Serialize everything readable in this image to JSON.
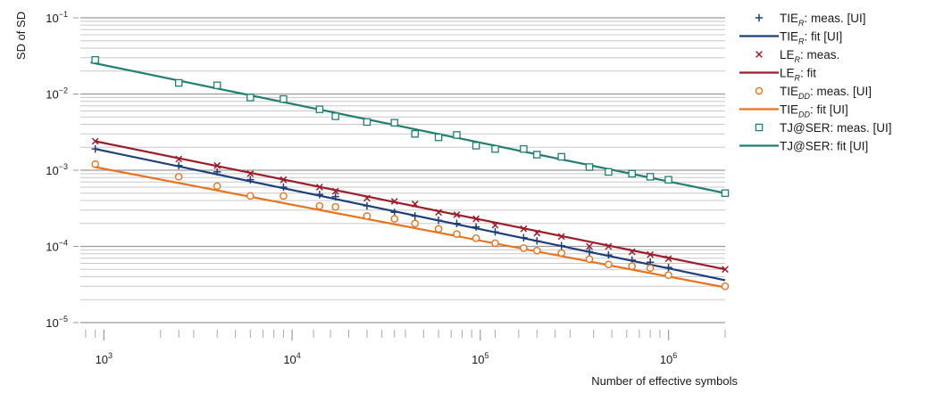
{
  "chart_data": {
    "type": "scatter",
    "title": "",
    "xlabel": "Number of effective symbols",
    "ylabel": "SD of SD",
    "xscale": "log",
    "yscale": "log",
    "xlim": [
      750,
      2000000
    ],
    "ylim": [
      1e-05,
      0.1
    ],
    "x_tick_labels": [
      {
        "value": 1000,
        "base": "10",
        "exp": "3"
      },
      {
        "value": 10000,
        "base": "10",
        "exp": "4"
      },
      {
        "value": 100000,
        "base": "10",
        "exp": "5"
      },
      {
        "value": 1000000,
        "base": "10",
        "exp": "6"
      }
    ],
    "y_tick_labels": [
      {
        "value": 1e-05,
        "base": "10",
        "exp": "−5"
      },
      {
        "value": 0.0001,
        "base": "10",
        "exp": "−4"
      },
      {
        "value": 0.001,
        "base": "10",
        "exp": "−3"
      },
      {
        "value": 0.01,
        "base": "10",
        "exp": "−2"
      },
      {
        "value": 0.1,
        "base": "10",
        "exp": "−1"
      }
    ],
    "grid": "horizontal minor and major lines",
    "legend_position": "right",
    "x_minor_ticks": [
      800,
      900,
      2000,
      2500,
      3000,
      4000,
      5000,
      6000,
      7000,
      8000,
      9000,
      13000,
      16000,
      20000,
      25000,
      30000,
      35000,
      40000,
      50000,
      60000,
      70000,
      80000,
      90000,
      120000,
      160000,
      200000,
      250000,
      300000,
      400000,
      500000,
      600000,
      700000,
      800000,
      900000,
      2000000
    ],
    "series": [
      {
        "legend_main": "TIE",
        "legend_sub": "R",
        "legend_rest": ": meas. [UI]",
        "kind": "marker",
        "marker": "plus",
        "color": "#1f3f7a",
        "x": [
          900,
          2500,
          4000,
          6000,
          9000,
          14000,
          17000,
          25000,
          35000,
          45000,
          60000,
          75000,
          95000,
          120000,
          170000,
          200000,
          270000,
          380000,
          480000,
          640000,
          800000,
          1000000
        ],
        "y": [
          0.0019,
          0.00115,
          0.00095,
          0.00075,
          0.0006,
          0.00048,
          0.00045,
          0.00034,
          0.00028,
          0.00025,
          0.00022,
          0.0002,
          0.00018,
          0.000155,
          0.00013,
          0.000118,
          0.000102,
          8.5e-05,
          7.7e-05,
          6.6e-05,
          6.2e-05,
          5.3e-05
        ]
      },
      {
        "legend_main": "TIE",
        "legend_sub": "R",
        "legend_rest": ": fit [UI]",
        "kind": "line",
        "color": "#1f3f7a",
        "x": [
          900,
          2000000
        ],
        "y": [
          0.0019,
          3.6e-05
        ]
      },
      {
        "legend_main": "LE",
        "legend_sub": "R",
        "legend_rest": ": meas.",
        "kind": "marker",
        "marker": "cross",
        "color": "#9e1b2a",
        "x": [
          900,
          2500,
          4000,
          6000,
          9000,
          14000,
          17000,
          25000,
          35000,
          45000,
          60000,
          75000,
          95000,
          120000,
          170000,
          200000,
          270000,
          380000,
          480000,
          640000,
          800000,
          1000000,
          2000000
        ],
        "y": [
          0.0024,
          0.0014,
          0.00115,
          0.0009,
          0.00075,
          0.0006,
          0.00053,
          0.00043,
          0.00039,
          0.00036,
          0.00028,
          0.00026,
          0.00023,
          0.00019,
          0.00017,
          0.00015,
          0.000135,
          0.0001,
          0.0001,
          8.5e-05,
          7.8e-05,
          6.9e-05,
          5e-05
        ]
      },
      {
        "legend_main": "LE",
        "legend_sub": "R",
        "legend_rest": ": fit",
        "kind": "line",
        "color": "#9e1b2a",
        "x": [
          900,
          2000000
        ],
        "y": [
          0.0024,
          5e-05
        ]
      },
      {
        "legend_main": "TIE",
        "legend_sub": "DD",
        "legend_rest": ": meas. [UI]",
        "kind": "marker",
        "marker": "circle",
        "color": "#e8731f",
        "x": [
          900,
          2500,
          4000,
          6000,
          9000,
          14000,
          17000,
          25000,
          35000,
          45000,
          60000,
          75000,
          95000,
          120000,
          170000,
          200000,
          270000,
          380000,
          480000,
          640000,
          800000,
          1000000,
          2000000
        ],
        "y": [
          0.0012,
          0.00082,
          0.00062,
          0.00046,
          0.00046,
          0.00034,
          0.00033,
          0.00025,
          0.00023,
          0.0002,
          0.00017,
          0.000145,
          0.000128,
          0.00011,
          9.5e-05,
          8.8e-05,
          8.2e-05,
          6.8e-05,
          5.8e-05,
          5.5e-05,
          5.2e-05,
          4.2e-05,
          3e-05
        ]
      },
      {
        "legend_main": "TIE",
        "legend_sub": "DD",
        "legend_rest": ": fit [UI]",
        "kind": "line",
        "color": "#e8731f",
        "x": [
          900,
          2000000
        ],
        "y": [
          0.0011,
          2.9e-05
        ]
      },
      {
        "legend_main": "TJ@SER",
        "legend_sub": "",
        "legend_rest": ": meas. [UI]",
        "kind": "marker",
        "marker": "square",
        "color": "#1e7f72",
        "x": [
          900,
          2500,
          4000,
          6000,
          9000,
          14000,
          17000,
          25000,
          35000,
          45000,
          60000,
          75000,
          95000,
          120000,
          170000,
          200000,
          270000,
          380000,
          480000,
          640000,
          800000,
          1000000,
          2000000
        ],
        "y": [
          0.028,
          0.014,
          0.013,
          0.009,
          0.0086,
          0.0063,
          0.0051,
          0.0043,
          0.0042,
          0.003,
          0.0027,
          0.0029,
          0.0021,
          0.0019,
          0.0019,
          0.0016,
          0.0015,
          0.0011,
          0.00095,
          0.0009,
          0.00082,
          0.00075,
          0.0005
        ]
      },
      {
        "legend_main": "TJ@SER",
        "legend_sub": "",
        "legend_rest": ": fit [UI]",
        "kind": "line",
        "color": "#1e7f72",
        "x": [
          850,
          2000000
        ],
        "y": [
          0.026,
          0.0005
        ]
      }
    ]
  }
}
